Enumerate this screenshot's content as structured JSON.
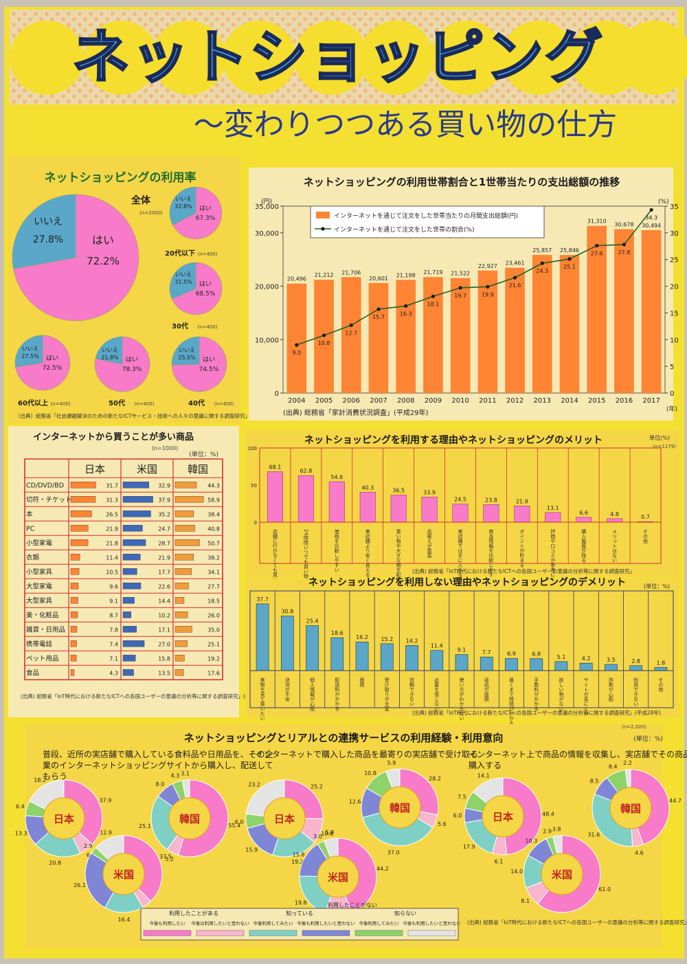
{
  "title": "ネットショッピング",
  "subtitle": "〜変わりつつある買い物の仕方",
  "colors": {
    "paper": "#f4e031",
    "orange": "#ff8433",
    "pink": "#f77bc8",
    "blue": "#5aa7c9",
    "green": "#8ed36a",
    "yellow": "#f5d646",
    "cream": "#f7e9b4",
    "title_blue": "#4aa8e0"
  },
  "panel1": {
    "title": "ネットショッピングの利用率",
    "big": {
      "label": "全体",
      "n": "(n=2000)",
      "yes_label": "はい",
      "yes": "72.2%",
      "no_label": "いいえ",
      "no": "27.8%",
      "yes_val": 72.2
    },
    "small": [
      {
        "label": "20代以下",
        "n": "(n=400)",
        "yes": "67.3%",
        "no": "32.8%",
        "yes_val": 67.3
      },
      {
        "label": "30代",
        "n": "(n=400)",
        "yes": "68.5%",
        "no": "31.5%",
        "yes_val": 68.5
      },
      {
        "label": "60代以上",
        "n": "(n=400)",
        "yes": "72.5%",
        "no": "27.5%",
        "yes_val": 72.5
      },
      {
        "label": "50代",
        "n": "(n=400)",
        "yes": "78.3%",
        "no": "21.8%",
        "yes_val": 78.3
      },
      {
        "label": "40代",
        "n": "(n=400)",
        "yes": "74.5%",
        "no": "25.5%",
        "yes_val": 74.5
      }
    ],
    "yes_word": "はい",
    "no_word": "いいえ",
    "source": "（出典）総務省「社会課題解決のための新たなICTサービス・技術への人々の意識に関する調査研究」（平成27年）"
  },
  "chart_data": [
    {
      "type": "bar",
      "title": "ネットショッピングの利用世帯割合と1世帯当たりの支出総額の推移",
      "categories": [
        "2004",
        "2005",
        "2006",
        "2007",
        "2008",
        "2009",
        "2010",
        "2011",
        "2012",
        "2013",
        "2014",
        "2015",
        "2016",
        "2017"
      ],
      "series": [
        {
          "name": "インターネットを通じて注文をした世帯当たりの月間支出総額(円)",
          "values": [
            20496,
            21212,
            21706,
            20601,
            21198,
            21719,
            21522,
            22927,
            23461,
            25857,
            25846,
            31310,
            30678,
            30494
          ]
        },
        {
          "name": "インターネットを通じて注文をした世帯の割合(%)",
          "values": [
            9.0,
            10.8,
            12.7,
            15.7,
            16.3,
            18.1,
            19.7,
            19.9,
            21.6,
            24.3,
            25.1,
            27.6,
            27.8,
            34.3
          ]
        }
      ],
      "bar_labels": [
        "20,496",
        "21,212",
        "21,706",
        "20,601",
        "21,198",
        "21,719",
        "21,522",
        "22,927",
        "23,461",
        "25,857",
        "25,846",
        "31,310",
        "30,678",
        "30,494"
      ],
      "line_labels": [
        "9.0",
        "10.8",
        "12.7",
        "15.7",
        "16.3",
        "18.1",
        "19.7",
        "19.9",
        "21.6",
        "24.3",
        "25.1",
        "27.6",
        "27.8",
        "34.3"
      ],
      "ylabel_left": "(円)",
      "ylabel_right": "(%)",
      "xlabel": "(年)",
      "yticks_left": [
        "0",
        "10,000",
        "20,000",
        "30,000",
        "35,000"
      ],
      "yticks_right": [
        "0",
        "5",
        "10",
        "15",
        "20",
        "25",
        "30",
        "35"
      ],
      "ylim_left": [
        0,
        35000
      ],
      "ylim_right": [
        0,
        35
      ],
      "source": "(出典) 総務省「家計消費状況調査」(平成29年)"
    },
    {
      "type": "table",
      "title": "インターネットから買うことが多い商品",
      "n": "(n=1000)",
      "unit": "(単位：%)",
      "columns": [
        "日本",
        "米国",
        "韓国"
      ],
      "rows": [
        {
          "label": "CD/DVD/BD",
          "values": [
            31.7,
            32.9,
            44.3
          ]
        },
        {
          "label": "切符・チケット",
          "values": [
            31.3,
            37.9,
            58.9
          ]
        },
        {
          "label": "本",
          "values": [
            26.5,
            35.2,
            38.4
          ]
        },
        {
          "label": "PC",
          "values": [
            21.9,
            24.7,
            40.8
          ]
        },
        {
          "label": "小型家電",
          "values": [
            21.8,
            28.7,
            50.7
          ]
        },
        {
          "label": "衣類",
          "values": [
            11.4,
            21.9,
            38.2
          ]
        },
        {
          "label": "小型家具",
          "values": [
            10.5,
            17.7,
            34.1
          ]
        },
        {
          "label": "大型家電",
          "values": [
            9.6,
            22.6,
            27.7
          ]
        },
        {
          "label": "大型家具",
          "values": [
            9.1,
            14.4,
            18.5
          ]
        },
        {
          "label": "美・化粧品",
          "values": [
            8.7,
            10.2,
            26.0
          ]
        },
        {
          "label": "雑貨・日用品",
          "values": [
            7.8,
            17.1,
            35.0
          ]
        },
        {
          "label": "携帯電話",
          "values": [
            7.4,
            27.0,
            25.1
          ]
        },
        {
          "label": "ペット用品",
          "values": [
            7.1,
            15.8,
            19.2
          ]
        },
        {
          "label": "食品",
          "values": [
            4.3,
            13.5,
            17.6
          ]
        }
      ],
      "value_labels": [
        [
          "31.7",
          "32.9",
          "44.3"
        ],
        [
          "31.3",
          "37.9",
          "58.9"
        ],
        [
          "26.5",
          "35.2",
          "38.4"
        ],
        [
          "21.9",
          "24.7",
          "40.8"
        ],
        [
          "21.8",
          "28.7",
          "50.7"
        ],
        [
          "11.4",
          "21.9",
          "38.2"
        ],
        [
          "10.5",
          "17.7",
          "34.1"
        ],
        [
          "9.6",
          "22.6",
          "27.7"
        ],
        [
          "9.1",
          "14.4",
          "18.5"
        ],
        [
          "8.7",
          "10.2",
          "26.0"
        ],
        [
          "7.8",
          "17.1",
          "35.0"
        ],
        [
          "7.4",
          "27.0",
          "25.1"
        ],
        [
          "7.1",
          "15.8",
          "19.2"
        ],
        [
          "4.3",
          "13.5",
          "17.6"
        ]
      ],
      "source": "(出典) 総務省「IoT時代における新たなICTへの各国ユーザーの意識の分析等に関する調査研究」(平成28年)"
    },
    {
      "type": "bar",
      "title": "ネットショッピングを利用する理由やネットショッピングのメリット",
      "unit": "単位(%)",
      "n": "(n=1179)",
      "yticks": [
        "0",
        "50",
        "100"
      ],
      "ylim": [
        0,
        100
      ],
      "values": [
        68.1,
        62.8,
        54.6,
        40.3,
        36.5,
        33.9,
        24.5,
        23.8,
        21.9,
        13.1,
        6.6,
        4.8,
        0.7
      ],
      "value_labels": [
        "68.1",
        "62.8",
        "54.6",
        "40.3",
        "36.5",
        "33.9",
        "24.5",
        "23.8",
        "21.9",
        "13.1",
        "6.6",
        "4.8",
        "0.7"
      ],
      "categories": [
        "店舗に行かなくても買い物ができる",
        "24時間いつでも買い物ができる",
        "価格を比較しやすい",
        "実店舗より安く買える",
        "重い物や大きな物を配送してくれる",
        "品揃えが豊富",
        "実店舗では手に入らない物が買える",
        "商品情報を比較しやすい",
        "ポイントが貯まる",
        "評価や口コミが参考になる",
        "購入履歴が残る",
        "メリットはない",
        "その他"
      ],
      "source": "(出典) 総務省「IoT時代における新たなICTへの各国ユーザーの意識の分析等に関する調査研究」"
    },
    {
      "type": "bar",
      "title": "ネットショッピングを利用しない理由やネットショッピングのデメリット",
      "unit": "(単位：%)",
      "values": [
        37.7,
        30.8,
        25.4,
        18.6,
        16.2,
        15.2,
        14.2,
        11.4,
        9.1,
        7.7,
        6.9,
        6.8,
        5.1,
        4.2,
        3.5,
        2.8,
        1.8
      ],
      "value_labels": [
        "37.7",
        "30.8",
        "25.4",
        "18.6",
        "16.2",
        "15.2",
        "14.2",
        "11.4",
        "9.1",
        "7.7",
        "6.9",
        "6.8",
        "5.1",
        "4.2",
        "3.5",
        "2.8",
        "1.8"
      ],
      "categories": [
        "実物を見て買いたい",
        "決済が不安",
        "個人情報が心配",
        "配送料がかかる",
        "面倒",
        "受け取りが大変",
        "信頼できない",
        "必要を感じない",
        "使い方がわからない",
        "返品が面倒",
        "届くまで時間がかかる",
        "手数料がかかる",
        "欲しい物がない",
        "サイトが見にくい",
        "詐欺が心配",
        "利用できない",
        "その他"
      ],
      "source": "(出典) 総務省「IoT時代における新たなICTへの各国ユーザーの意識の分析等に関する調査研究」(平成28年)"
    },
    {
      "type": "pie",
      "title": "ネットショッピングとリアルとの連携サービスの利用経験・利用意向",
      "n": "(n=2,020)",
      "unit": "(単位：%)",
      "groups": [
        {
          "caption": "普段、近所の実店舗で購入している食料品や日用品を、その企業のインターネットショッピングサイトから購入し、配送してもらう",
          "donuts": [
            {
              "country": "日本",
              "values": [
                37.9,
                6.4,
                20.8,
                13.3,
                6.4,
                18.2
              ],
              "labels": [
                "37.9",
                "6.4",
                "20.8",
                "13.3",
                "6.4",
                "18.2"
              ]
            },
            {
              "country": "韓国",
              "values": [
                55.4,
                5.2,
                25.1,
                8.0,
                4.3,
                3.1
              ],
              "labels": [
                "55.4",
                "5.2",
                "25.1",
                "8.0",
                "4.3",
                "3.1"
              ]
            },
            {
              "country": "米国",
              "values": [
                37.5,
                4.2,
                16.4,
                26.1,
                2.9,
                12.9
              ],
              "labels": [
                "37.5",
                "4.2",
                "16.4",
                "26.1",
                "2.9",
                "12.9"
              ]
            }
          ]
        },
        {
          "caption": "インターネットで購入した商品を最寄りの実店舗で受け取る",
          "donuts": [
            {
              "country": "日本",
              "values": [
                25.2,
                10.6,
                19.2,
                15.9,
                6.0,
                23.2
              ],
              "labels": [
                "25.2",
                "10.6",
                "19.2",
                "15.9",
                "6.0",
                "23.2"
              ]
            },
            {
              "country": "韓国",
              "values": [
                28.2,
                5.6,
                37.0,
                12.6,
                10.8,
                5.9
              ],
              "labels": [
                "28.2",
                "5.6",
                "37.0",
                "12.6",
                "10.8",
                "5.9"
              ]
            },
            {
              "country": "米国",
              "values": [
                44.2,
                11.3,
                19.8,
                15.8,
                3.0,
                5.9
              ],
              "labels": [
                "44.2",
                "11.3",
                "19.8",
                "15.8",
                "3.0",
                "5.9"
              ]
            }
          ]
        },
        {
          "caption": "インターネット上で商品の情報を収集し、実店舗でその商品を購入する",
          "donuts": [
            {
              "country": "日本",
              "values": [
                48.4,
                6.1,
                17.9,
                6.0,
                7.5,
                14.1
              ],
              "labels": [
                "48.4",
                "6.1",
                "17.9",
                "6.0",
                "7.5",
                "14.1"
              ]
            },
            {
              "country": "韓国",
              "values": [
                44.7,
                4.6,
                31.6,
                8.5,
                8.4,
                2.2
              ],
              "labels": [
                "44.7",
                "4.6",
                "31.6",
                "8.5",
                "8.4",
                "2.2"
              ]
            },
            {
              "country": "米国",
              "values": [
                61.0,
                8.1,
                14.0,
                10.3,
                2.9,
                3.8
              ],
              "labels": [
                "61.0",
                "8.1",
                "14.0",
                "10.3",
                "2.9",
                "3.8"
              ]
            }
          ]
        }
      ],
      "legend_groups": [
        "利用したことがある",
        "利用したことがない",
        "知っている",
        "知らない"
      ],
      "legend": [
        {
          "label": "今後も利用したい",
          "color": "#f77bc8"
        },
        {
          "label": "今後は利用したいと思わない",
          "color": "#f7b6cc"
        },
        {
          "label": "今後利用してみたい",
          "color": "#7fd0c4"
        },
        {
          "label": "今後も利用したいと思わない",
          "color": "#7f86d6"
        },
        {
          "label": "今後利用してみたい",
          "color": "#8ed36a"
        },
        {
          "label": "今後も利用したいと思わない",
          "color": "#e4e4e4"
        }
      ],
      "source": "(出典) 総務省「IoT時代における新たなICTへの各国ユーザーの意識の分析等に関する調査研究」(平成28年)"
    }
  ]
}
